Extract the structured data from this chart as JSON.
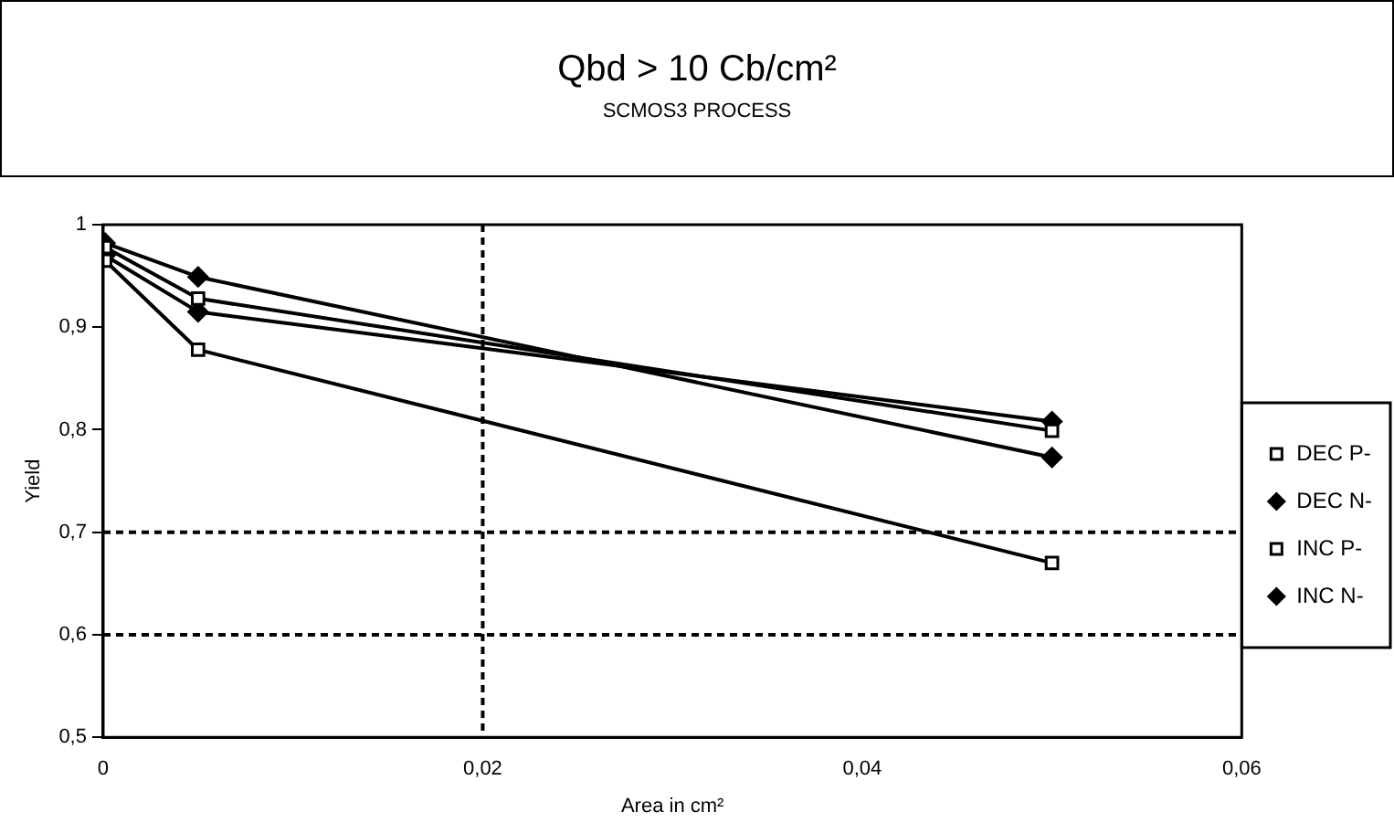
{
  "chart_data": {
    "type": "line",
    "title": "Qbd > 10 Cb/cm²",
    "subtitle": "SCMOS3 PROCESS",
    "xlabel": "Area in cm²",
    "ylabel": "Yield",
    "x": [
      0.0001,
      0.005,
      0.05
    ],
    "series": [
      {
        "name": "DEC P-",
        "color": "#000000",
        "marker": "square",
        "values": [
          0.978,
          0.928,
          0.799
        ]
      },
      {
        "name": "DEC N-",
        "color": "#000000",
        "marker": "diamond",
        "values": [
          0.982,
          0.949,
          0.773
        ]
      },
      {
        "name": "INC P-",
        "color": "#000000",
        "marker": "square",
        "values": [
          0.965,
          0.878,
          0.67
        ]
      },
      {
        "name": "INC N-",
        "color": "#000000",
        "marker": "diamond",
        "values": [
          0.97,
          0.915,
          0.808
        ]
      }
    ],
    "xlim": [
      0,
      0.06
    ],
    "xticks": [
      {
        "value": 0,
        "label": "0"
      },
      {
        "value": 0.02,
        "label": "0,02"
      },
      {
        "value": 0.04,
        "label": "0,04"
      },
      {
        "value": 0.06,
        "label": "0,06"
      }
    ],
    "ylim": [
      0.5,
      1
    ],
    "yticks": [
      {
        "value": 0.5,
        "label": "0,5"
      },
      {
        "value": 0.6,
        "label": "0,6"
      },
      {
        "value": 0.7,
        "label": "0,7"
      },
      {
        "value": 0.8,
        "label": "0,8"
      },
      {
        "value": 0.9,
        "label": "0,9"
      },
      {
        "value": 1,
        "label": "1"
      }
    ],
    "ref_lines": [
      {
        "axis": "x",
        "value": 0.02,
        "line_style": "dashed"
      },
      {
        "axis": "y",
        "value": 0.7,
        "line_style": "dashed"
      },
      {
        "axis": "y",
        "value": 0.6,
        "line_style": "dashed"
      }
    ],
    "grid": false,
    "legend": "right",
    "line_style": "solid"
  }
}
